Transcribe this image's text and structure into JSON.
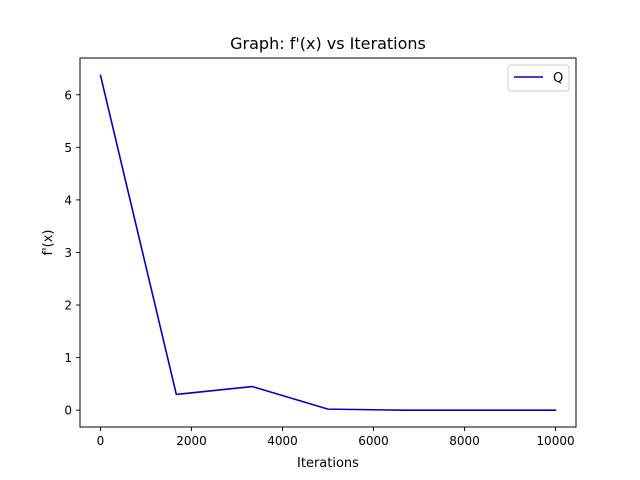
{
  "chart_data": {
    "type": "line",
    "title": "Graph: f'(x) vs Iterations",
    "xlabel": "Iterations",
    "ylabel": "f'(x)",
    "xlim": [
      -450,
      10450
    ],
    "ylim": [
      -0.32,
      6.7
    ],
    "xticks": [
      0,
      2000,
      4000,
      6000,
      8000,
      10000
    ],
    "yticks": [
      0,
      1,
      2,
      3,
      4,
      5,
      6
    ],
    "grid": false,
    "legend_position": "top-right",
    "series": [
      {
        "name": "Q",
        "color": "#0000cc",
        "x": [
          0,
          1667,
          3333,
          5000,
          6667,
          8333,
          10000
        ],
        "y": [
          6.37,
          0.3,
          0.45,
          0.02,
          0.0,
          0.0,
          0.0
        ]
      }
    ]
  }
}
